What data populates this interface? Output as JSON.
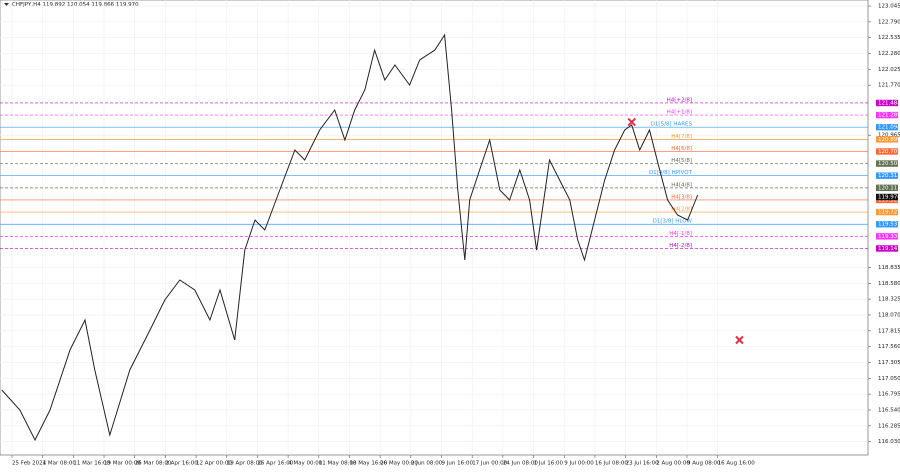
{
  "chart_data": {
    "type": "line",
    "title": "CHFJPY,H4  119.892 120.054 119.866 119.970",
    "series": [
      {
        "name": "CHFJPY",
        "color": "#222222",
        "x": [
          -0.33,
          0.26,
          0.75,
          1.24,
          1.89,
          2.38,
          2.7,
          3.19,
          3.84,
          4.5,
          4.98,
          5.47,
          5.96,
          6.45,
          6.78,
          7.26,
          7.59,
          7.92,
          8.24,
          8.73,
          9.22,
          9.54,
          10.03,
          10.52,
          10.85,
          11.17,
          11.5,
          11.82,
          12.15,
          12.48,
          12.96,
          13.29,
          13.78,
          14.1,
          14.33,
          14.53,
          14.76,
          14.92,
          15.24,
          15.57,
          15.9,
          16.22,
          16.55,
          16.87,
          17.1,
          17.52,
          17.85,
          18.18,
          18.44,
          18.66,
          18.99,
          19.32,
          19.64,
          19.97,
          20.2,
          20.46,
          20.78,
          21.11,
          21.37,
          21.69,
          22.02,
          22.35
        ],
        "values": [
          116.861,
          116.539,
          116.056,
          116.539,
          117.506,
          117.989,
          117.183,
          116.137,
          117.183,
          117.828,
          118.311,
          118.633,
          118.472,
          117.989,
          118.472,
          117.667,
          119.116,
          119.599,
          119.438,
          120.082,
          120.726,
          120.565,
          121.048,
          121.37,
          120.887,
          121.37,
          121.692,
          122.336,
          121.853,
          122.095,
          121.773,
          122.175,
          122.336,
          122.578,
          121.37,
          120.082,
          118.955,
          119.921,
          120.404,
          120.887,
          120.082,
          119.921,
          120.404,
          119.921,
          119.116,
          120.565,
          120.243,
          119.921,
          119.277,
          118.955,
          119.599,
          120.243,
          120.726,
          121.048,
          121.129,
          120.726,
          121.048,
          120.404,
          119.921,
          119.679,
          119.599,
          120.002
        ]
      }
    ],
    "markers": {
      "color": "#e0304a",
      "x": [
        20.2,
        23.71
      ],
      "values": [
        121.177,
        117.667
      ]
    },
    "levels": [
      {
        "name": "H4[+2/8]",
        "value": 121.484,
        "color": "#cc00cc",
        "style": "dashed"
      },
      {
        "name": "H4[+1/8]",
        "value": 121.289,
        "color": "#ff33ff",
        "style": "dashed"
      },
      {
        "name": "D1[5/8] HARES",
        "value": 121.094,
        "color": "#3399ff",
        "style": "solid"
      },
      {
        "name": "H4[7/8]",
        "value": 120.898,
        "color": "#ff9933",
        "style": "solid"
      },
      {
        "name": "H4[6/8]",
        "value": 120.703,
        "color": "#ff6633",
        "style": "solid"
      },
      {
        "name": "H4[5/8]",
        "value": 120.508,
        "color": "#607050",
        "style": "dashed"
      },
      {
        "name": "D1[4/8] HPIVOT",
        "value": 120.313,
        "color": "#3399ff",
        "style": "solid"
      },
      {
        "name": "H4[4/8]",
        "value": 120.117,
        "color": "#607050",
        "style": "dashed"
      },
      {
        "name": "H4[3/8]",
        "value": 119.922,
        "color": "#ff6633",
        "style": "solid"
      },
      {
        "name": "H4[2/8]",
        "value": 119.727,
        "color": "#ff9933",
        "style": "solid"
      },
      {
        "name": "D1[3/8] HLOW",
        "value": 119.531,
        "color": "#3399ff",
        "style": "solid"
      },
      {
        "name": "H4[-1/8]",
        "value": 119.336,
        "color": "#ff33ff",
        "style": "dashed"
      },
      {
        "name": "H4[-2/8]",
        "value": 119.141,
        "color": "#cc00cc",
        "style": "dashed"
      }
    ],
    "last_price": 119.97,
    "last_price_label": "119.970",
    "xlim": [
      -0.39,
      27.9
    ],
    "ylim": [
      115.815,
      123.142
    ],
    "xticks": [
      {
        "value": 0,
        "label": "25 Feb 2021"
      },
      {
        "value": 1,
        "label": "4 Mar 08:00"
      },
      {
        "value": 2,
        "label": "11 Mar 16:00"
      },
      {
        "value": 3,
        "label": "19 Mar 00:00"
      },
      {
        "value": 4,
        "label": "26 Mar 08:00"
      },
      {
        "value": 5,
        "label": "2 Apr 16:00"
      },
      {
        "value": 6,
        "label": "12 Apr 00:00"
      },
      {
        "value": 7,
        "label": "19 Apr 08:00"
      },
      {
        "value": 8,
        "label": "26 Apr 16:00"
      },
      {
        "value": 9,
        "label": "4 May 00:00"
      },
      {
        "value": 10,
        "label": "11 May 08:00"
      },
      {
        "value": 11,
        "label": "18 May 16:00"
      },
      {
        "value": 12,
        "label": "26 May 00:00"
      },
      {
        "value": 13,
        "label": "2 Jun 08:00"
      },
      {
        "value": 14,
        "label": "9 Jun 16:00"
      },
      {
        "value": 15,
        "label": "17 Jun 00:00"
      },
      {
        "value": 16,
        "label": "24 Jun 08:00"
      },
      {
        "value": 17,
        "label": "1 Jul 16:00"
      },
      {
        "value": 18,
        "label": "9 Jul 00:00"
      },
      {
        "value": 19,
        "label": "16 Jul 08:00"
      },
      {
        "value": 20,
        "label": "23 Jul 16:00"
      },
      {
        "value": 21,
        "label": "2 Aug 00:00"
      },
      {
        "value": 22,
        "label": "9 Aug 08:00"
      },
      {
        "value": 23,
        "label": "16 Aug 16:00"
      }
    ],
    "yticks": [
      123.045,
      {
        "value": 122.79,
        "label": "122.790"
      },
      122.535,
      {
        "value": 122.28,
        "label": "122.280"
      },
      122.025,
      {
        "value": 121.77,
        "label": "121.770"
      },
      120.965,
      118.835,
      {
        "value": 118.58,
        "label": "118.580"
      },
      118.325,
      {
        "value": 118.07,
        "label": "118.070"
      },
      117.815,
      {
        "value": 117.56,
        "label": "117.560"
      },
      117.305,
      {
        "value": 117.05,
        "label": "117.050"
      },
      116.795,
      {
        "value": 116.54,
        "label": "116.540"
      },
      116.285,
      {
        "value": 116.03,
        "label": "116.030"
      }
    ],
    "grid": true
  }
}
